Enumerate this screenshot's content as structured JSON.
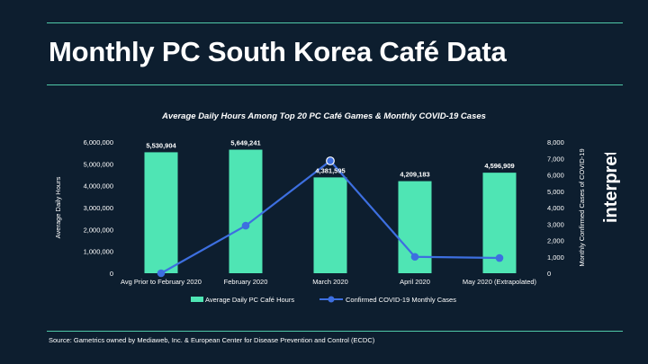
{
  "page": {
    "title": "Monthly PC South Korea Café Data",
    "source": "Source: Gametrics owned by Mediaweb, Inc. & European Center for Disease Prevention and Control (ECDC)",
    "brand": "interpret"
  },
  "colors": {
    "background": "#0d1e2f",
    "accent_rule": "#4fc9a8",
    "bars": "#4fe5b4",
    "line": "#3d6fe0",
    "text": "#ffffff"
  },
  "chart_data": {
    "type": "bar",
    "title": "Average Daily Hours Among Top 20 PC Café Games & Monthly COVID-19 Cases",
    "categories": [
      "Avg Prior to February 2020",
      "February 2020",
      "March 2020",
      "April 2020",
      "May 2020 (Extrapolated)"
    ],
    "ylabel": "Average Daily Hours",
    "y2label": "Monthly Confirmed Cases of COVID-19",
    "ylim": [
      0,
      6000000
    ],
    "y2lim": [
      0,
      8000
    ],
    "yticks": [
      "0",
      "1,000,000",
      "2,000,000",
      "3,000,000",
      "4,000,000",
      "5,000,000",
      "6,000,000"
    ],
    "y2ticks": [
      "0",
      "1,000",
      "2,000",
      "3,000",
      "4,000",
      "5,000",
      "6,000",
      "7,000",
      "8,000"
    ],
    "series": [
      {
        "name": "Average Daily PC Café Hours",
        "type": "bar",
        "axis": "left",
        "values": [
          5530904,
          5649241,
          4381595,
          4209183,
          4596909
        ],
        "labels": [
          "5,530,904",
          "5,649,241",
          "4,381,595",
          "4,209,183",
          "4,596,909"
        ]
      },
      {
        "name": "Confirmed COVID-19 Monthly Cases",
        "type": "line",
        "axis": "right",
        "values": [
          0,
          2900,
          6850,
          1000,
          930
        ]
      }
    ],
    "grid": false,
    "legend": "bottom"
  }
}
